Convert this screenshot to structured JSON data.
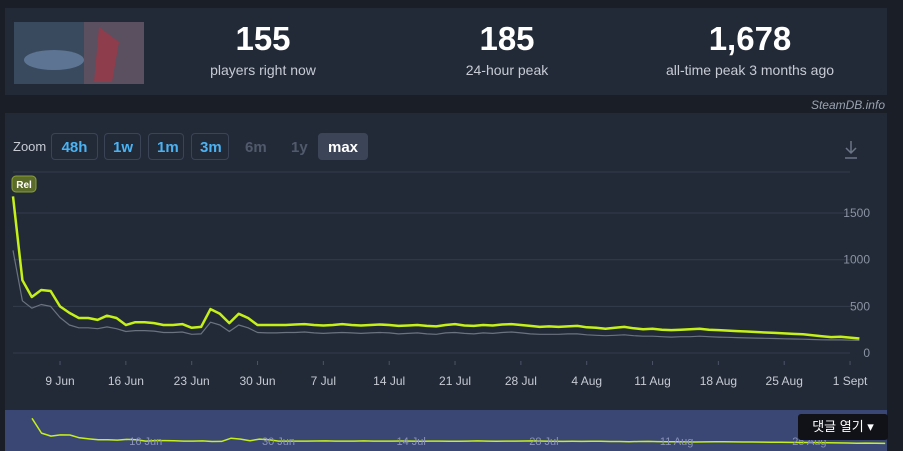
{
  "header": {
    "stats": [
      {
        "value": "155",
        "label": "players right now"
      },
      {
        "value": "185",
        "label": "24-hour peak"
      },
      {
        "value": "1,678",
        "label": "all-time peak 3 months ago"
      }
    ],
    "credit": "SteamDB.info"
  },
  "zoom": {
    "label": "Zoom",
    "options": [
      "48h",
      "1w",
      "1m",
      "3m",
      "6m",
      "1y",
      "max"
    ],
    "enabled": [
      true,
      true,
      true,
      true,
      false,
      false,
      true
    ],
    "active": 6
  },
  "chart_data": {
    "type": "line",
    "annotation": "Rel",
    "categories": [
      null,
      null,
      null,
      null,
      null,
      "9 Jun",
      null,
      null,
      null,
      null,
      null,
      null,
      "16 Jun",
      null,
      null,
      null,
      null,
      null,
      null,
      "23 Jun",
      null,
      null,
      null,
      null,
      null,
      null,
      "30 Jun",
      null,
      null,
      null,
      null,
      null,
      null,
      "7 Jul",
      null,
      null,
      null,
      null,
      null,
      null,
      "14 Jul",
      null,
      null,
      null,
      null,
      null,
      null,
      "21 Jul",
      null,
      null,
      null,
      null,
      null,
      null,
      "28 Jul",
      null,
      null,
      null,
      null,
      null,
      null,
      "4 Aug",
      null,
      null,
      null,
      null,
      null,
      null,
      "11 Aug",
      null,
      null,
      null,
      null,
      null,
      null,
      "18 Aug",
      null,
      null,
      null,
      null,
      null,
      null,
      "25 Aug",
      null,
      null,
      null,
      null,
      null,
      null,
      "1 Sept",
      null
    ],
    "series": [
      {
        "color": "#6b7280",
        "values": [
          1100,
          560,
          480,
          520,
          500,
          380,
          300,
          270,
          270,
          260,
          280,
          260,
          230,
          240,
          240,
          235,
          220,
          220,
          225,
          200,
          205,
          330,
          300,
          230,
          300,
          270,
          220,
          215,
          215,
          220,
          220,
          225,
          215,
          210,
          215,
          220,
          215,
          210,
          215,
          220,
          215,
          205,
          210,
          215,
          205,
          200,
          215,
          220,
          210,
          205,
          215,
          210,
          220,
          225,
          215,
          205,
          200,
          200,
          200,
          205,
          205,
          195,
          190,
          185,
          190,
          195,
          185,
          180,
          180,
          175,
          170,
          175,
          175,
          180,
          175,
          170,
          168,
          165,
          162,
          160,
          158,
          155,
          152,
          150,
          148,
          145,
          142,
          140,
          140,
          138,
          135
        ]
      },
      {
        "color": "#c5f018",
        "values": [
          1678,
          780,
          600,
          675,
          665,
          500,
          430,
          375,
          375,
          355,
          400,
          375,
          300,
          330,
          330,
          320,
          300,
          300,
          310,
          270,
          280,
          470,
          420,
          320,
          420,
          375,
          300,
          300,
          300,
          300,
          305,
          310,
          300,
          295,
          300,
          310,
          300,
          295,
          300,
          305,
          300,
          290,
          295,
          300,
          290,
          285,
          300,
          310,
          295,
          290,
          300,
          295,
          305,
          310,
          300,
          290,
          280,
          285,
          280,
          285,
          290,
          275,
          270,
          260,
          270,
          280,
          265,
          255,
          260,
          250,
          245,
          250,
          255,
          260,
          250,
          245,
          240,
          235,
          230,
          225,
          220,
          215,
          210,
          205,
          200,
          190,
          180,
          170,
          175,
          165,
          155
        ]
      }
    ],
    "ylim": [
      0,
      1940
    ],
    "yticks": [
      0,
      500,
      1000,
      1500
    ],
    "grid": true,
    "navigator_labels": [
      "16 Jun",
      "30 Jun",
      "14 Jul",
      "28 Jul",
      "11 Aug",
      "25 Aug"
    ]
  },
  "overlay_button": "댓글 열기"
}
